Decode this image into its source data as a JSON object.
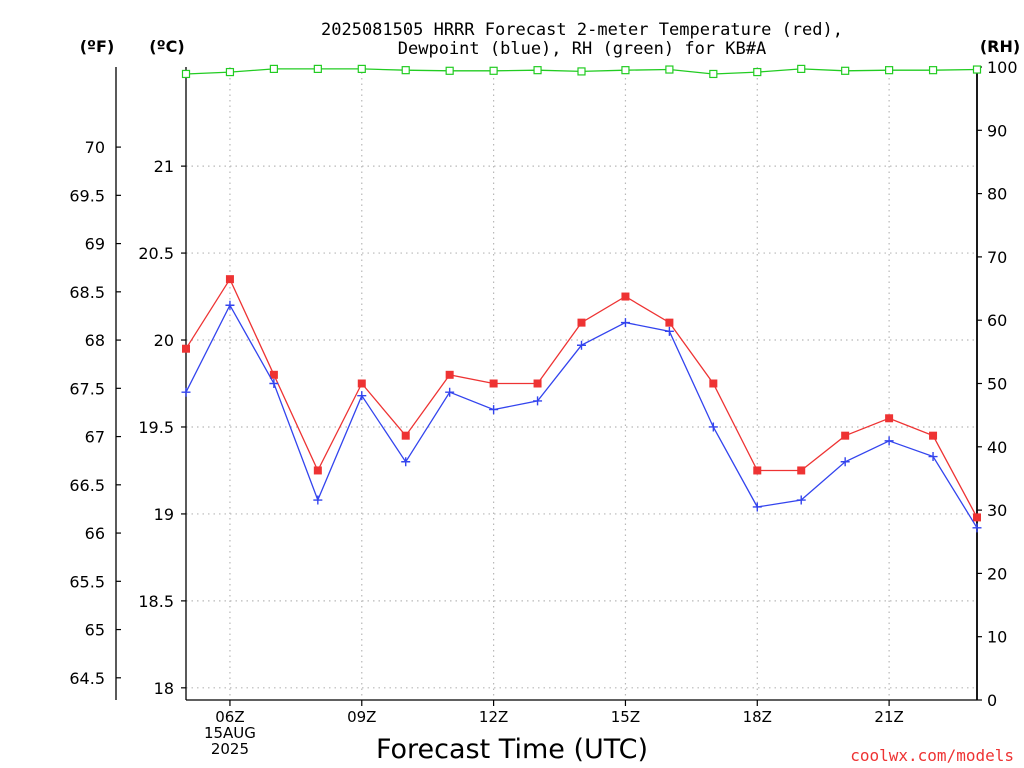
{
  "chart_data": {
    "type": "line",
    "title_lines": [
      "2025081505 HRRR Forecast 2-meter Temperature (red),",
      "Dewpoint (blue), RH (green) for KB#A"
    ],
    "xlabel": "Forecast Time (UTC)",
    "credit": "coolwx.com/models",
    "units": {
      "fahrenheit": "(ºF)",
      "celsius": "(ºC)",
      "rh": "(RH)"
    },
    "x": [
      "05Z",
      "06Z",
      "07Z",
      "08Z",
      "09Z",
      "10Z",
      "11Z",
      "12Z",
      "13Z",
      "14Z",
      "15Z",
      "16Z",
      "17Z",
      "18Z",
      "19Z",
      "20Z",
      "21Z",
      "22Z",
      "23Z"
    ],
    "x_tick_labels": [
      {
        "x": "06Z",
        "lines": [
          "06Z",
          "15AUG",
          "2025"
        ]
      },
      {
        "x": "09Z",
        "lines": [
          "09Z"
        ]
      },
      {
        "x": "12Z",
        "lines": [
          "12Z"
        ]
      },
      {
        "x": "15Z",
        "lines": [
          "15Z"
        ]
      },
      {
        "x": "18Z",
        "lines": [
          "18Z"
        ]
      },
      {
        "x": "21Z",
        "lines": [
          "21Z"
        ]
      }
    ],
    "ylim_c": [
      17.93,
      21.57
    ],
    "ylim_f": [
      64.27,
      70.83
    ],
    "ylim_rh": [
      0,
      100
    ],
    "y_ticks_c": [
      "18",
      "18.5",
      "19",
      "19.5",
      "20",
      "20.5",
      "21"
    ],
    "y_ticks_f": [
      "64.5",
      "65",
      "65.5",
      "66",
      "66.5",
      "67",
      "67.5",
      "68",
      "68.5",
      "69",
      "69.5",
      "70"
    ],
    "y_ticks_rh": [
      "0",
      "10",
      "20",
      "30",
      "40",
      "50",
      "60",
      "70",
      "80",
      "90",
      "100"
    ],
    "grid": true,
    "series": [
      {
        "name": "Temperature",
        "axis": "celsius",
        "color": "#ee3333",
        "marker": "square",
        "values": [
          19.95,
          20.35,
          19.8,
          19.25,
          19.75,
          19.45,
          19.8,
          19.75,
          19.75,
          20.1,
          20.25,
          20.1,
          19.75,
          19.25,
          19.25,
          19.45,
          19.55,
          19.45,
          18.98
        ]
      },
      {
        "name": "Dewpoint",
        "axis": "celsius",
        "color": "#3344ee",
        "marker": "plus",
        "values": [
          19.7,
          20.2,
          19.75,
          19.08,
          19.68,
          19.3,
          19.7,
          19.6,
          19.65,
          19.97,
          20.1,
          20.05,
          19.5,
          19.04,
          19.08,
          19.3,
          19.42,
          19.33,
          18.92
        ]
      },
      {
        "name": "RH",
        "axis": "rh",
        "color": "#22cc22",
        "marker": "open-square",
        "values": [
          98.9,
          99.2,
          99.7,
          99.7,
          99.7,
          99.5,
          99.4,
          99.4,
          99.5,
          99.3,
          99.5,
          99.6,
          98.9,
          99.2,
          99.7,
          99.4,
          99.5,
          99.5,
          99.6
        ]
      }
    ]
  }
}
